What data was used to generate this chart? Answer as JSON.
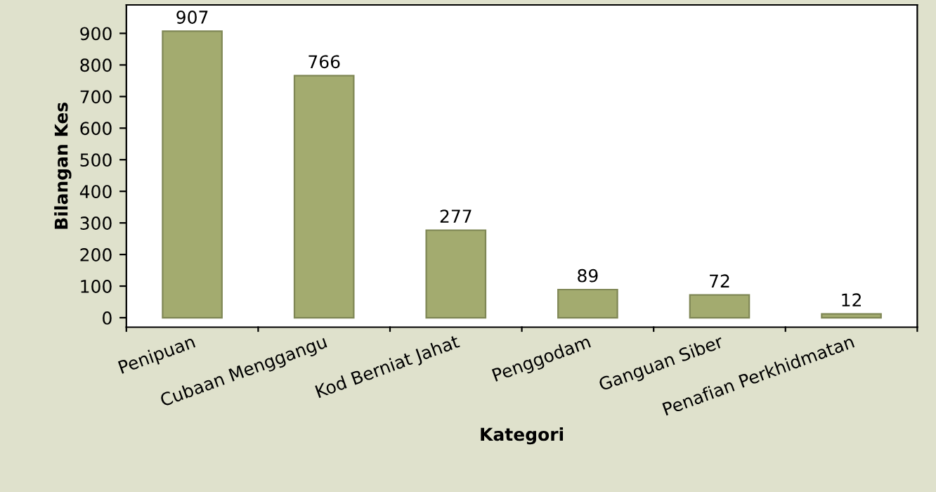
{
  "chart_data": {
    "type": "bar",
    "categories": [
      "Penipuan",
      "Cubaan Menggangu",
      "Kod Berniat Jahat",
      "Penggodam",
      "Ganguan Siber",
      "Penafian Perkhidmatan"
    ],
    "values": [
      907,
      766,
      277,
      89,
      72,
      12
    ],
    "color": "#a3ab6f",
    "xlabel": "Kategori",
    "ylabel": "Bilangan Kes",
    "ylim": [
      -30,
      990
    ],
    "yticks": [
      0,
      100,
      200,
      300,
      400,
      500,
      600,
      700,
      800,
      900
    ],
    "data_labels": true,
    "grid": false,
    "legend": false
  }
}
